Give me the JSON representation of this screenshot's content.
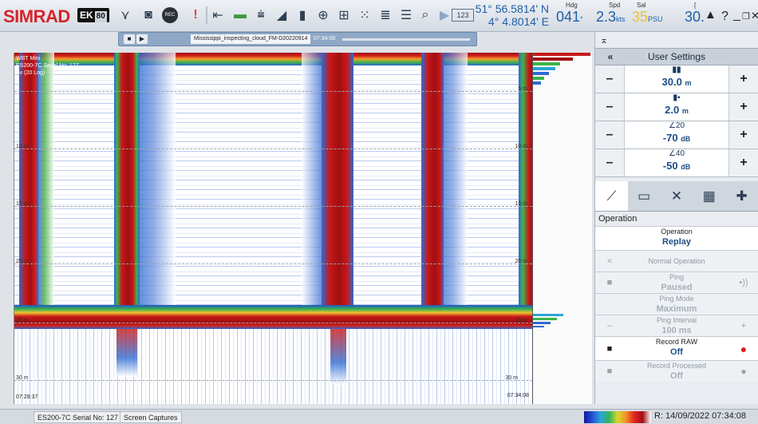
{
  "app": {
    "brand": "SIMRAD",
    "model": "EK",
    "model_sub": "80"
  },
  "toolbar": {
    "icons": [
      "chevrons-down-icon",
      "camera-icon",
      "record-icon",
      "alert-icon",
      "range-icon",
      "horizon-icon",
      "depth-icon",
      "bottom-icon",
      "bars-icon",
      "target-icon",
      "grid-icon",
      "scatter-icon",
      "histogram-icon",
      "layers-icon",
      "zoom-icon",
      "video-icon",
      "numeric-icon"
    ],
    "record_label": "REC",
    "numeric_label": "123"
  },
  "nav": {
    "lat": "51° 56.5814' N",
    "lon": "4° 4.8014' E",
    "hdg_label": "Hdg",
    "hdg": "041",
    "hdg_unit": "°",
    "spd_label": "Spd",
    "spd": "2.3",
    "spd_unit": "kts",
    "sal_label": "Sal",
    "sal": "35",
    "sal_unit": "PSU",
    "temp_label": "[",
    "temp": "30.",
    "alert": "▲",
    "help": "?"
  },
  "playback": {
    "file": "Mississippi_inspecting_cloud_FM-D20220914",
    "time": "07:34:08"
  },
  "echogram": {
    "title": "WBT Mini",
    "transceiver": "ES200-7C Serial No: 127",
    "variable": "Sv (20 Log)",
    "depth_labels": [
      "5 m",
      "10 m",
      "15 m",
      "20 m",
      "25 m",
      "30 m"
    ],
    "left_labels": [
      "10 m",
      "15 m",
      "20 m",
      "25 m",
      "30 m"
    ],
    "time_start": "07:28:37",
    "time_end": "07:34:08"
  },
  "panel": {
    "header_icon": "pin-icon",
    "title": "User Settings",
    "back": "«",
    "range": {
      "value": "30.0",
      "unit": "m"
    },
    "start": {
      "value": "2.0",
      "unit": "m"
    },
    "gain": {
      "top": "20",
      "value": "-70",
      "unit": "dB"
    },
    "threshold": {
      "top": "40",
      "value": "-50",
      "unit": "dB"
    },
    "tabs": [
      "sweep-icon",
      "monitor-icon",
      "tools-icon",
      "layout-icon",
      "plus-icon"
    ],
    "section": "Operation",
    "operation_name": "Operation",
    "operation_value": "Replay",
    "normal_op": "Normal Operation",
    "ping_name": "Ping",
    "ping_value": "Paused",
    "ping_mode_name": "Ping Mode",
    "ping_mode_value": "Maximum",
    "ping_interval_name": "Ping Interval",
    "ping_interval_value": "100 ms",
    "record_raw_name": "Record RAW",
    "record_raw_value": "Off",
    "record_proc_name": "Record Processed",
    "record_proc_value": "Off",
    "minus": "–",
    "plus": "+"
  },
  "status": {
    "tab1": "ES200-7C Serial No: 127",
    "tab2": "Screen Captures",
    "replay_time": "R: 14/09/2022  07:34:08"
  },
  "colors": {
    "accent": "#1d5fa6",
    "brand": "#d8232a",
    "record": "#e31b1b"
  }
}
